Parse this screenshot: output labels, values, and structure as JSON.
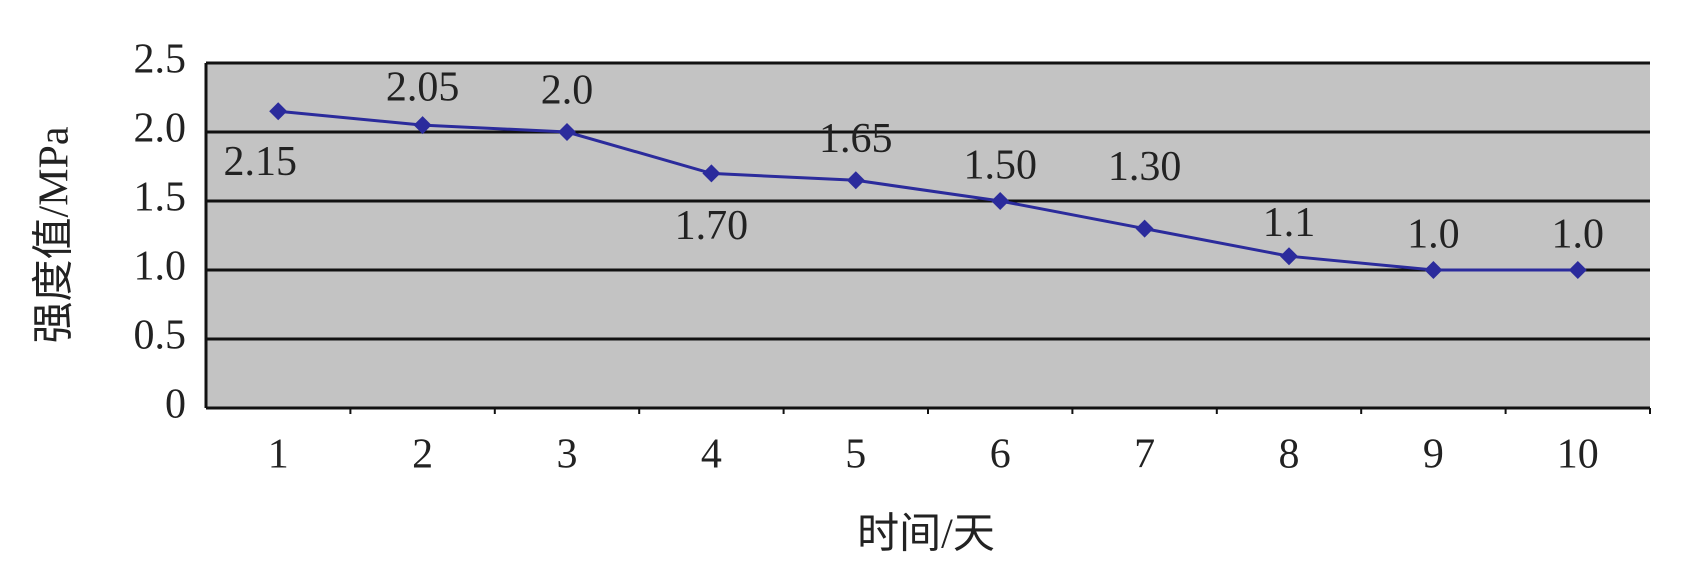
{
  "chart_data": {
    "type": "line",
    "xlabel": "时间/天",
    "ylabel": "强度值/MPa",
    "categories": [
      "1",
      "2",
      "3",
      "4",
      "5",
      "6",
      "7",
      "8",
      "9",
      "10"
    ],
    "series": [
      {
        "color": "#2b2b9c",
        "values": [
          2.15,
          2.05,
          2.0,
          1.7,
          1.65,
          1.5,
          1.3,
          1.1,
          1.0,
          1.0
        ],
        "value_labels": [
          "2.15",
          "2.05",
          "2.0",
          "1.70",
          "1.65",
          "1.50",
          "1.30",
          "1.1",
          "1.0",
          "1.0"
        ]
      }
    ],
    "ylim": [
      0,
      2.5
    ],
    "yticks": [
      {
        "value": 0,
        "label": "0"
      },
      0.5,
      {
        "value": 1,
        "label": "1.0"
      },
      1.5,
      {
        "value": 2,
        "label": "2.0"
      },
      2.5
    ],
    "grid": true
  }
}
